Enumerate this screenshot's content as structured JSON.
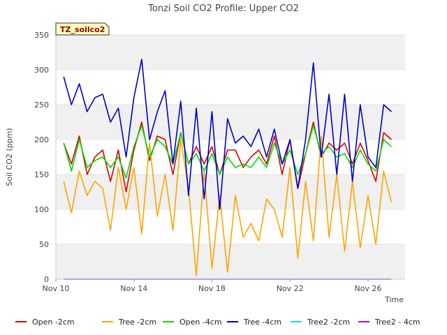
{
  "chart_data": {
    "type": "line",
    "title": "Tonzi Soil CO2 Profile: Upper CO2",
    "tag": "TZ_soilco2",
    "xlabel": "Time",
    "ylabel": "Soil CO2 (ppm)",
    "ylim": [
      0,
      350
    ],
    "y_ticks": [
      0,
      50,
      100,
      150,
      200,
      250,
      300,
      350
    ],
    "xlim": [
      10.0,
      27.9
    ],
    "x_ticks": [
      {
        "value": 10,
        "label": "Nov 10"
      },
      {
        "value": 14,
        "label": "Nov 14"
      },
      {
        "value": 18,
        "label": "Nov 18"
      },
      {
        "value": 22,
        "label": "Nov 22"
      },
      {
        "value": 26,
        "label": "Nov 26"
      }
    ],
    "grid": "horizontal bands",
    "legend": "bottom",
    "x": [
      10.4,
      10.8,
      11.2,
      11.6,
      12.0,
      12.4,
      12.8,
      13.2,
      13.6,
      14.0,
      14.4,
      14.8,
      15.2,
      15.6,
      16.0,
      16.4,
      16.8,
      17.2,
      17.6,
      18.0,
      18.4,
      18.8,
      19.2,
      19.6,
      20.0,
      20.4,
      20.8,
      21.2,
      21.6,
      22.0,
      22.4,
      22.8,
      23.2,
      23.6,
      24.0,
      24.4,
      24.8,
      25.2,
      25.6,
      26.0,
      26.4,
      26.8,
      27.2
    ],
    "series": [
      {
        "name": "Open -2cm",
        "color": "#dd0000",
        "values": [
          195,
          165,
          205,
          150,
          175,
          185,
          140,
          185,
          125,
          185,
          225,
          170,
          205,
          200,
          150,
          210,
          165,
          190,
          165,
          190,
          150,
          185,
          185,
          160,
          175,
          185,
          165,
          205,
          150,
          200,
          130,
          180,
          225,
          175,
          195,
          185,
          195,
          165,
          195,
          170,
          140,
          210,
          200
        ]
      },
      {
        "name": "Tree -2cm",
        "color": "#ffa500",
        "values": [
          140,
          95,
          155,
          120,
          140,
          130,
          70,
          160,
          100,
          160,
          65,
          195,
          90,
          150,
          70,
          200,
          130,
          5,
          155,
          15,
          120,
          10,
          120,
          60,
          80,
          55,
          115,
          100,
          60,
          160,
          30,
          140,
          55,
          205,
          60,
          150,
          40,
          140,
          45,
          120,
          50,
          155,
          110
        ]
      },
      {
        "name": "Open -4cm",
        "color": "#00dd00",
        "values": [
          195,
          155,
          200,
          160,
          170,
          175,
          160,
          175,
          145,
          190,
          220,
          175,
          200,
          190,
          165,
          210,
          165,
          180,
          155,
          180,
          150,
          175,
          160,
          165,
          160,
          175,
          160,
          195,
          165,
          185,
          150,
          180,
          220,
          180,
          190,
          175,
          180,
          160,
          185,
          165,
          155,
          200,
          190
        ]
      },
      {
        "name": "Tree -4cm",
        "color": "#0000cc",
        "values": [
          290,
          250,
          280,
          240,
          260,
          265,
          225,
          245,
          175,
          260,
          315,
          200,
          240,
          270,
          165,
          255,
          120,
          245,
          115,
          240,
          100,
          230,
          195,
          205,
          190,
          215,
          175,
          215,
          165,
          200,
          130,
          200,
          310,
          175,
          265,
          150,
          265,
          140,
          250,
          175,
          160,
          250,
          240
        ]
      },
      {
        "name": "Tree2 -2cm",
        "color": "#00e5e5",
        "values": [
          0,
          0,
          0,
          0,
          0,
          0,
          0,
          0,
          0,
          0,
          0,
          0,
          0,
          0,
          0,
          0,
          0,
          0,
          0,
          0,
          0,
          0,
          0,
          0,
          0,
          0,
          0,
          0,
          0,
          0,
          0,
          0,
          0,
          0,
          0,
          0,
          0,
          0,
          0,
          0,
          0,
          0,
          0
        ]
      },
      {
        "name": "Tree2 - 4cm",
        "color": "#cc00cc",
        "values": [
          0,
          0,
          0,
          0,
          0,
          0,
          0,
          0,
          0,
          0,
          0,
          0,
          0,
          0,
          0,
          0,
          0,
          0,
          0,
          0,
          0,
          0,
          0,
          0,
          0,
          0,
          0,
          0,
          0,
          0,
          0,
          0,
          0,
          0,
          0,
          0,
          0,
          0,
          0,
          0,
          0,
          0,
          0
        ]
      }
    ]
  }
}
